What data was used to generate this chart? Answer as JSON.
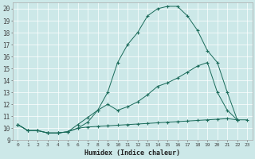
{
  "xlabel": "Humidex (Indice chaleur)",
  "background_color": "#cce8e8",
  "line_color": "#1a6b5a",
  "xlim": [
    -0.5,
    23.5
  ],
  "ylim": [
    9.0,
    20.5
  ],
  "yticks": [
    9,
    10,
    11,
    12,
    13,
    14,
    15,
    16,
    17,
    18,
    19,
    20
  ],
  "xticks": [
    0,
    1,
    2,
    3,
    4,
    5,
    6,
    7,
    8,
    9,
    10,
    11,
    12,
    13,
    14,
    15,
    16,
    17,
    18,
    19,
    20,
    21,
    22,
    23
  ],
  "line1_x": [
    0,
    1,
    2,
    3,
    4,
    5,
    6,
    7,
    8,
    9,
    10,
    11,
    12,
    13,
    14,
    15,
    16,
    17,
    18,
    19,
    20,
    21,
    22
  ],
  "line1_y": [
    10.3,
    9.8,
    9.8,
    9.6,
    9.6,
    9.7,
    10.0,
    10.5,
    11.5,
    13.0,
    15.5,
    17.0,
    18.0,
    19.4,
    20.0,
    20.2,
    20.2,
    19.4,
    18.2,
    16.5,
    15.5,
    13.0,
    10.7
  ],
  "line2_x": [
    0,
    1,
    2,
    3,
    4,
    5,
    6,
    7,
    8,
    9,
    10,
    11,
    12,
    13,
    14,
    15,
    16,
    17,
    18,
    19,
    20,
    21,
    22
  ],
  "line2_y": [
    10.3,
    9.8,
    9.8,
    9.6,
    9.6,
    9.7,
    10.3,
    10.9,
    11.5,
    12.0,
    11.5,
    11.8,
    12.2,
    12.8,
    13.5,
    13.8,
    14.2,
    14.7,
    15.2,
    15.5,
    13.0,
    11.5,
    10.7
  ],
  "line3_x": [
    0,
    1,
    2,
    3,
    4,
    5,
    6,
    7,
    8,
    9,
    10,
    11,
    12,
    13,
    14,
    15,
    16,
    17,
    18,
    19,
    20,
    21,
    22,
    23
  ],
  "line3_y": [
    10.3,
    9.8,
    9.8,
    9.6,
    9.6,
    9.7,
    10.0,
    10.1,
    10.15,
    10.2,
    10.25,
    10.3,
    10.35,
    10.4,
    10.45,
    10.5,
    10.55,
    10.6,
    10.65,
    10.7,
    10.75,
    10.8,
    10.7,
    10.7
  ]
}
